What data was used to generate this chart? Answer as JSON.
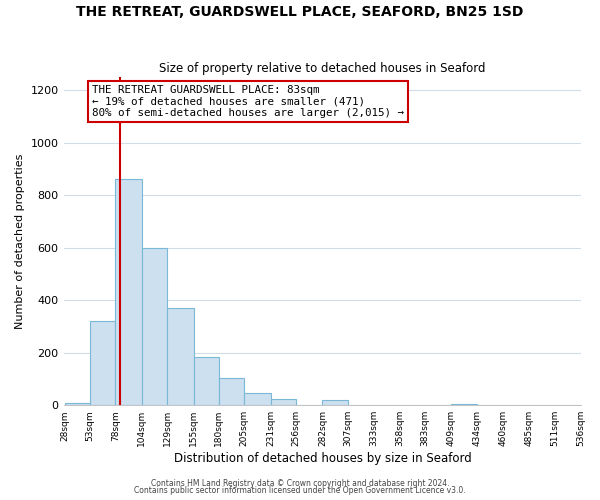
{
  "title": "THE RETREAT, GUARDSWELL PLACE, SEAFORD, BN25 1SD",
  "subtitle": "Size of property relative to detached houses in Seaford",
  "xlabel": "Distribution of detached houses by size in Seaford",
  "ylabel": "Number of detached properties",
  "bar_color": "#cce0f0",
  "bar_edge_color": "#7ab8d8",
  "grid_color": "#d0dce8",
  "annotation_line_color": "#cc0000",
  "annotation_box_edge_color": "#cc0000",
  "annotation_text_line1": "THE RETREAT GUARDSWELL PLACE: 83sqm",
  "annotation_text_line2": "← 19% of detached houses are smaller (471)",
  "annotation_text_line3": "80% of semi-detached houses are larger (2,015) →",
  "footer_line1": "Contains HM Land Registry data © Crown copyright and database right 2024.",
  "footer_line2": "Contains public sector information licensed under the Open Government Licence v3.0.",
  "bin_edges": [
    28,
    53,
    78,
    104,
    129,
    155,
    180,
    205,
    231,
    256,
    282,
    307,
    333,
    358,
    383,
    409,
    434,
    460,
    485,
    511,
    536
  ],
  "bin_labels": [
    "28sqm",
    "53sqm",
    "78sqm",
    "104sqm",
    "129sqm",
    "155sqm",
    "180sqm",
    "205sqm",
    "231sqm",
    "256sqm",
    "282sqm",
    "307sqm",
    "333sqm",
    "358sqm",
    "383sqm",
    "409sqm",
    "434sqm",
    "460sqm",
    "485sqm",
    "511sqm",
    "536sqm"
  ],
  "bar_heights": [
    10,
    320,
    860,
    600,
    370,
    185,
    105,
    48,
    22,
    0,
    20,
    0,
    0,
    0,
    0,
    5,
    0,
    0,
    0,
    0
  ],
  "vline_x": 83,
  "ylim": [
    0,
    1250
  ],
  "yticks": [
    0,
    200,
    400,
    600,
    800,
    1000,
    1200
  ],
  "figsize": [
    6.0,
    5.0
  ],
  "dpi": 100,
  "background_color": "#ffffff"
}
